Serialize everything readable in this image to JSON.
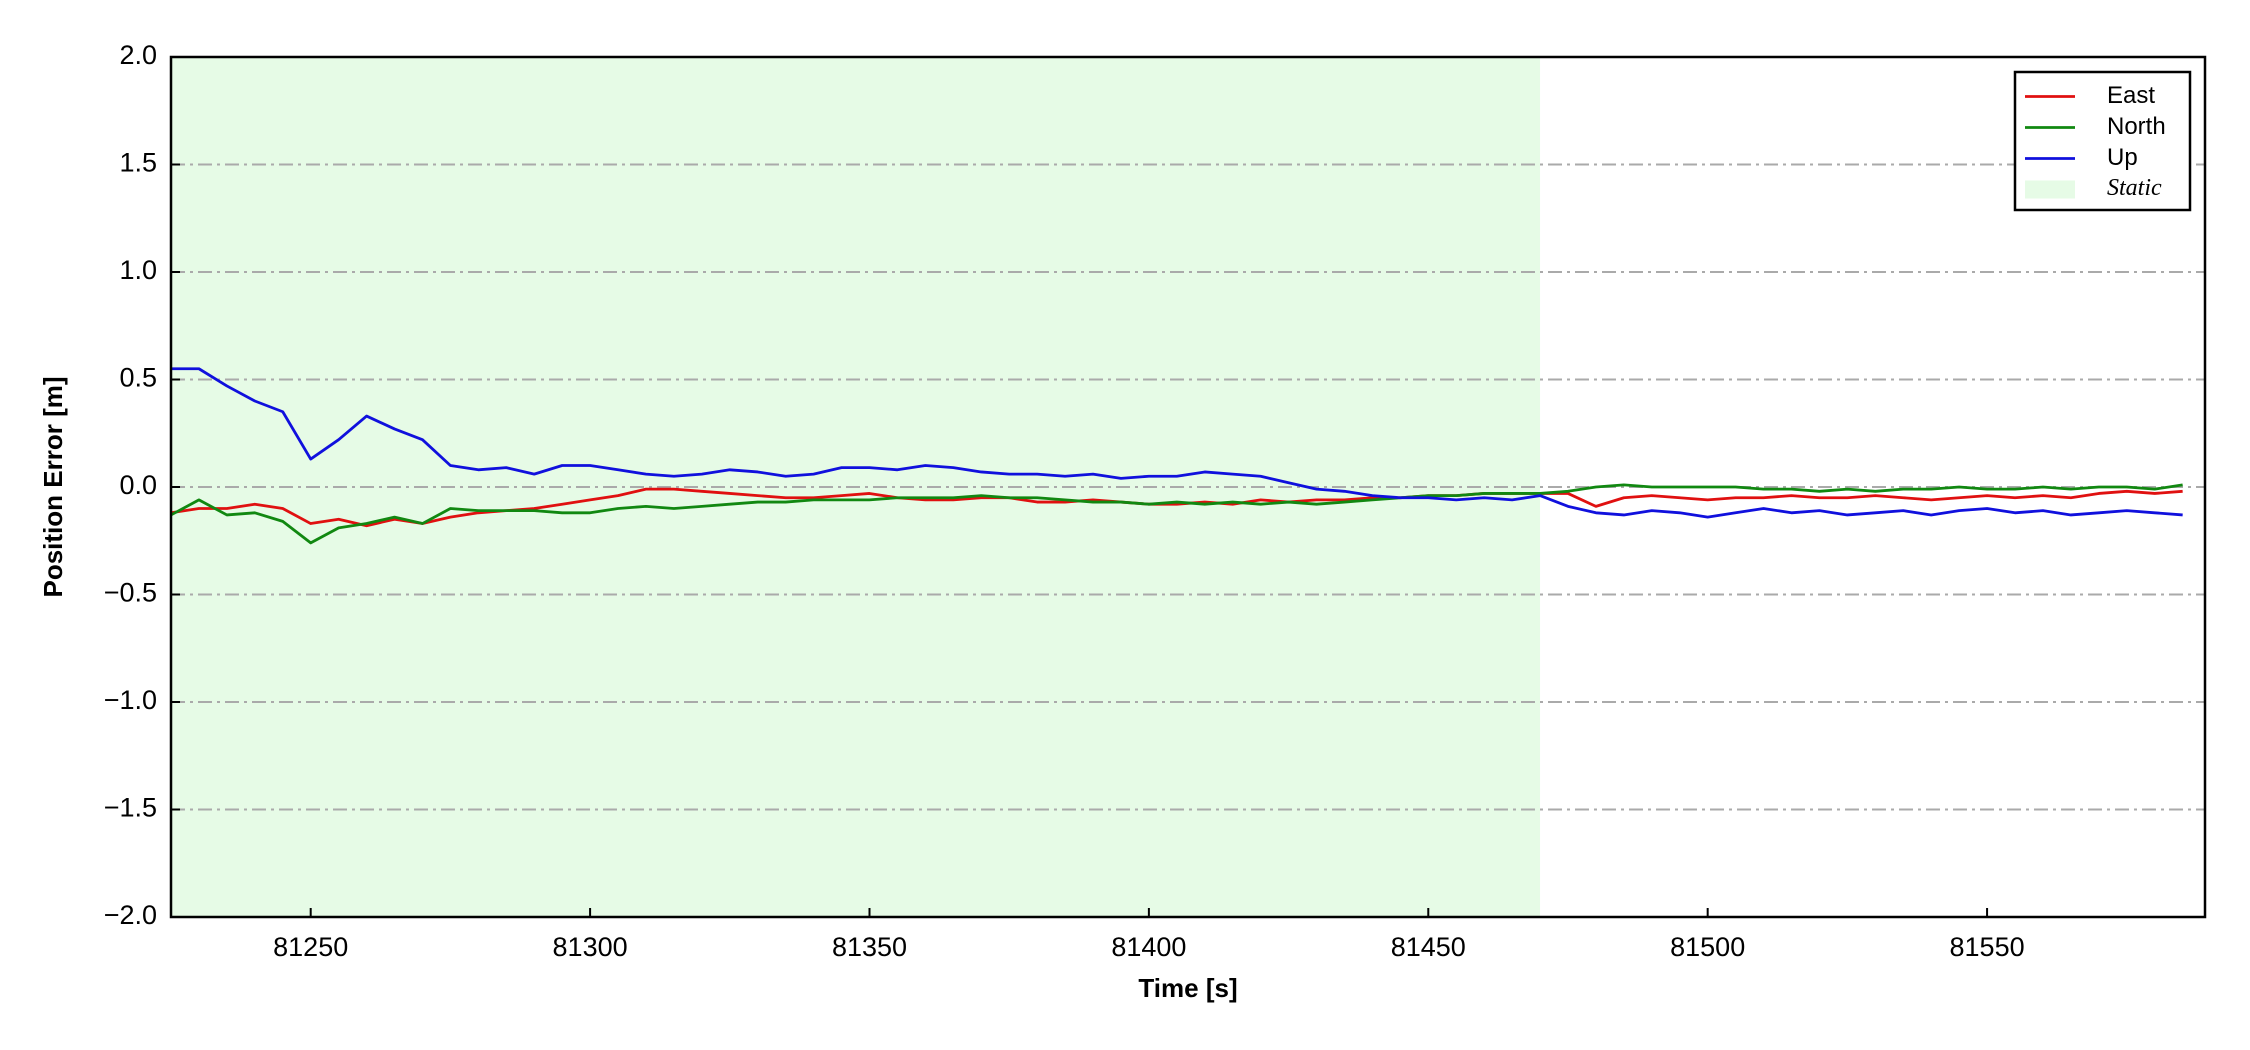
{
  "chart_data": {
    "type": "line",
    "xlabel": "Time [s]",
    "ylabel": "Position Error [m]",
    "x": [
      81225,
      81230,
      81235,
      81240,
      81245,
      81250,
      81255,
      81260,
      81265,
      81270,
      81275,
      81280,
      81285,
      81290,
      81295,
      81300,
      81305,
      81310,
      81315,
      81320,
      81325,
      81330,
      81335,
      81340,
      81345,
      81350,
      81355,
      81360,
      81365,
      81370,
      81375,
      81380,
      81385,
      81390,
      81395,
      81400,
      81405,
      81410,
      81415,
      81420,
      81425,
      81430,
      81435,
      81440,
      81445,
      81450,
      81455,
      81460,
      81465,
      81470,
      81475,
      81480,
      81485,
      81490,
      81495,
      81500,
      81505,
      81510,
      81515,
      81520,
      81525,
      81530,
      81535,
      81540,
      81545,
      81550,
      81555,
      81560,
      81565,
      81570,
      81575,
      81580,
      81585
    ],
    "series": [
      {
        "name": "East",
        "color": "#e01010",
        "values": [
          -0.12,
          -0.1,
          -0.1,
          -0.08,
          -0.1,
          -0.17,
          -0.15,
          -0.18,
          -0.15,
          -0.17,
          -0.14,
          -0.12,
          -0.11,
          -0.1,
          -0.08,
          -0.06,
          -0.04,
          -0.01,
          -0.01,
          -0.02,
          -0.03,
          -0.04,
          -0.05,
          -0.05,
          -0.04,
          -0.03,
          -0.05,
          -0.06,
          -0.06,
          -0.05,
          -0.05,
          -0.07,
          -0.07,
          -0.06,
          -0.07,
          -0.08,
          -0.08,
          -0.07,
          -0.08,
          -0.06,
          -0.07,
          -0.06,
          -0.06,
          -0.05,
          -0.05,
          -0.04,
          -0.04,
          -0.03,
          -0.03,
          -0.03,
          -0.03,
          -0.09,
          -0.05,
          -0.04,
          -0.05,
          -0.06,
          -0.05,
          -0.05,
          -0.04,
          -0.05,
          -0.05,
          -0.04,
          -0.05,
          -0.06,
          -0.05,
          -0.04,
          -0.05,
          -0.04,
          -0.05,
          -0.03,
          -0.02,
          -0.03,
          -0.02
        ]
      },
      {
        "name": "North",
        "color": "#118811",
        "values": [
          -0.13,
          -0.06,
          -0.13,
          -0.12,
          -0.16,
          -0.26,
          -0.19,
          -0.17,
          -0.14,
          -0.17,
          -0.1,
          -0.11,
          -0.11,
          -0.11,
          -0.12,
          -0.12,
          -0.1,
          -0.09,
          -0.1,
          -0.09,
          -0.08,
          -0.07,
          -0.07,
          -0.06,
          -0.06,
          -0.06,
          -0.05,
          -0.05,
          -0.05,
          -0.04,
          -0.05,
          -0.05,
          -0.06,
          -0.07,
          -0.07,
          -0.08,
          -0.07,
          -0.08,
          -0.07,
          -0.08,
          -0.07,
          -0.08,
          -0.07,
          -0.06,
          -0.05,
          -0.04,
          -0.04,
          -0.03,
          -0.03,
          -0.03,
          -0.02,
          0.0,
          0.01,
          0.0,
          0.0,
          0.0,
          0.0,
          -0.01,
          -0.01,
          -0.02,
          -0.01,
          -0.02,
          -0.01,
          -0.01,
          0.0,
          -0.01,
          -0.01,
          0.0,
          -0.01,
          0.0,
          0.0,
          -0.01,
          0.01
        ]
      },
      {
        "name": "Up",
        "color": "#1010dd",
        "values": [
          0.55,
          0.55,
          0.47,
          0.4,
          0.35,
          0.13,
          0.22,
          0.33,
          0.27,
          0.22,
          0.1,
          0.08,
          0.09,
          0.06,
          0.1,
          0.1,
          0.08,
          0.06,
          0.05,
          0.06,
          0.08,
          0.07,
          0.05,
          0.06,
          0.09,
          0.09,
          0.08,
          0.1,
          0.09,
          0.07,
          0.06,
          0.06,
          0.05,
          0.06,
          0.04,
          0.05,
          0.05,
          0.07,
          0.06,
          0.05,
          0.02,
          -0.01,
          -0.02,
          -0.04,
          -0.05,
          -0.05,
          -0.06,
          -0.05,
          -0.06,
          -0.04,
          -0.09,
          -0.12,
          -0.13,
          -0.11,
          -0.12,
          -0.14,
          -0.12,
          -0.1,
          -0.12,
          -0.11,
          -0.13,
          -0.12,
          -0.11,
          -0.13,
          -0.11,
          -0.1,
          -0.12,
          -0.11,
          -0.13,
          -0.12,
          -0.11,
          -0.12,
          -0.13
        ]
      }
    ],
    "shaded_regions": [
      {
        "name": "Static",
        "start": 81225,
        "end": 81470,
        "color": "#e6fbe6"
      }
    ],
    "xlim": [
      81225,
      81589
    ],
    "xticks": [
      81250,
      81300,
      81350,
      81400,
      81450,
      81500,
      81550
    ],
    "ylim": [
      -2.0,
      2.0
    ],
    "yticks": [
      {
        "value": -2.0,
        "label": "−2.0"
      },
      {
        "value": -1.5,
        "label": "−1.5"
      },
      {
        "value": -1.0,
        "label": "−1.0"
      },
      {
        "value": -0.5,
        "label": "−0.5"
      },
      {
        "value": 0.0,
        "label": "0.0"
      },
      {
        "value": 0.5,
        "label": "0.5"
      },
      {
        "value": 1.0,
        "label": "1.0"
      },
      {
        "value": 1.5,
        "label": "1.5"
      },
      {
        "value": 2.0,
        "label": "2.0"
      }
    ],
    "grid": true,
    "legend": "upper right"
  }
}
